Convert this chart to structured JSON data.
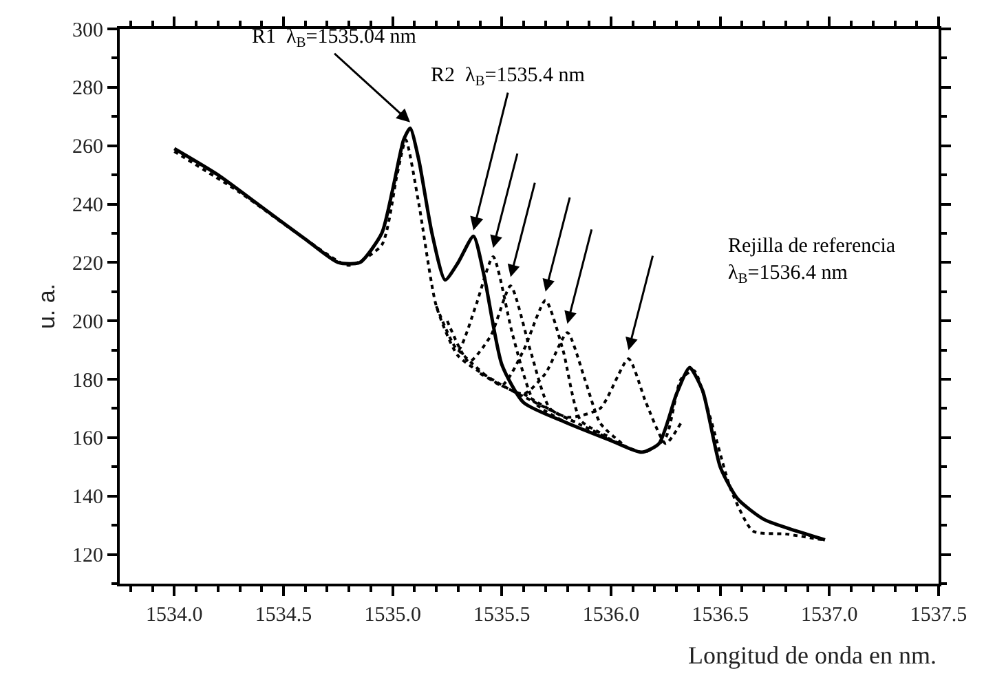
{
  "chart_data": {
    "type": "line",
    "xlabel": "Longitud de onda en nm.",
    "ylabel": "u. a.",
    "xlim": [
      1533.75,
      1537.5
    ],
    "ylim": [
      110,
      300
    ],
    "xticks": [
      {
        "value": 1534.0,
        "label": "1534.0"
      },
      {
        "value": 1534.5,
        "label": "1534.5"
      },
      {
        "value": 1535.0,
        "label": "1535.0"
      },
      {
        "value": 1535.5,
        "label": "1535.5"
      },
      {
        "value": 1536.0,
        "label": "1536.0"
      },
      {
        "value": 1536.5,
        "label": "1536.5"
      },
      {
        "value": 1537.0,
        "label": "1537.0"
      },
      {
        "value": 1537.5,
        "label": "1537.5"
      }
    ],
    "yticks": [
      120,
      140,
      160,
      180,
      200,
      220,
      240,
      260,
      280,
      300
    ],
    "marker": "none",
    "series": [
      {
        "color": "#000000",
        "line_style": "dotted",
        "x": [
          1534.0,
          1534.3,
          1534.6,
          1534.8,
          1534.95,
          1535.02,
          1535.06,
          1535.12,
          1535.2,
          1535.3,
          1535.5,
          1535.9,
          1536.15,
          1536.25,
          1536.32,
          1536.38,
          1536.45,
          1536.55,
          1536.65,
          1536.8,
          1536.97
        ],
        "values": [
          258,
          244,
          228,
          219,
          226,
          250,
          262,
          240,
          205,
          188,
          178,
          163,
          155,
          160,
          180,
          183,
          168,
          142,
          128,
          127,
          125
        ]
      },
      {
        "color": "#000000",
        "line_style": "dotted",
        "x": [
          1535.2,
          1535.3,
          1535.38,
          1535.46,
          1535.55,
          1535.65,
          1535.8
        ],
        "values": [
          205,
          190,
          205,
          222,
          195,
          172,
          165
        ]
      },
      {
        "color": "#000000",
        "line_style": "dotted",
        "x": [
          1535.25,
          1535.35,
          1535.45,
          1535.54,
          1535.63,
          1535.72,
          1535.85
        ],
        "values": [
          200,
          186,
          195,
          212,
          190,
          170,
          165
        ]
      },
      {
        "color": "#000000",
        "line_style": "dotted",
        "x": [
          1535.3,
          1535.5,
          1535.6,
          1535.7,
          1535.78,
          1535.86,
          1536.0
        ],
        "values": [
          190,
          178,
          190,
          207,
          190,
          166,
          160
        ]
      },
      {
        "color": "#000000",
        "line_style": "dotted",
        "x": [
          1535.4,
          1535.6,
          1535.7,
          1535.8,
          1535.88,
          1535.95,
          1536.05
        ],
        "values": [
          182,
          175,
          182,
          196,
          180,
          165,
          158
        ]
      },
      {
        "color": "#000000",
        "line_style": "dotted",
        "x": [
          1535.6,
          1535.8,
          1535.95,
          1536.08,
          1536.16,
          1536.25,
          1536.32
        ],
        "values": [
          175,
          167,
          170,
          187,
          172,
          158,
          165
        ]
      },
      {
        "color": "#000000",
        "line_style": "solid",
        "x": [
          1534.0,
          1534.2,
          1534.4,
          1534.6,
          1534.75,
          1534.85,
          1534.95,
          1535.0,
          1535.05,
          1535.08,
          1535.12,
          1535.18,
          1535.24,
          1535.3,
          1535.37,
          1535.42,
          1535.5,
          1535.6,
          1535.8,
          1536.0,
          1536.14,
          1536.22,
          1536.3,
          1536.36,
          1536.42,
          1536.5,
          1536.58,
          1536.7,
          1536.85,
          1536.98
        ],
        "values": [
          259,
          250,
          239,
          228,
          220,
          220,
          230,
          245,
          262,
          266,
          255,
          230,
          214,
          220,
          229,
          215,
          185,
          172,
          165,
          159,
          155,
          158,
          175,
          184,
          176,
          150,
          139,
          132,
          128,
          125
        ]
      }
    ],
    "annotations": [
      {
        "text": "R1  λ$_{B}$=1535.04 nm",
        "x": 1535.08,
        "y": 266
      },
      {
        "text": "R2  λ$_{B}$=1535.4 nm",
        "x": 1535.37,
        "y": 229
      },
      "Rejilla de referencia\nλ$_{B}$=1536.4 nm"
    ]
  }
}
